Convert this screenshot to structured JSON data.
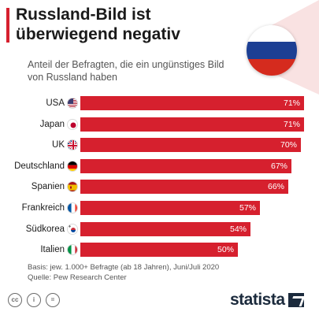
{
  "header": {
    "title": "Russland-Bild ist überwiegend negativ",
    "subtitle": "Anteil der Befragten, die ein ungünstiges Bild von Russland haben"
  },
  "colors": {
    "accent": "#d6202e",
    "bar": "#d6202e",
    "logo": "#1b2a3c"
  },
  "hero_flag": "russia-flag-icon",
  "chart_data": {
    "type": "bar",
    "orientation": "horizontal",
    "categories": [
      "USA",
      "Japan",
      "UK",
      "Deutschland",
      "Spanien",
      "Frankreich",
      "Südkorea",
      "Italien"
    ],
    "values": [
      71,
      71,
      70,
      67,
      66,
      57,
      54,
      50
    ],
    "value_labels": [
      "71%",
      "71%",
      "70%",
      "67%",
      "66%",
      "57%",
      "54%",
      "50%"
    ],
    "flags": [
      "usa-flag-icon",
      "japan-flag-icon",
      "uk-flag-icon",
      "germany-flag-icon",
      "spain-flag-icon",
      "france-flag-icon",
      "south-korea-flag-icon",
      "italy-flag-icon"
    ],
    "xlim": [
      0,
      71
    ],
    "unit": "%"
  },
  "footer": {
    "basis": "Basis: jew. 1.000+ Befragte (ab 18 Jahren), Juni/Juli 2020",
    "source": "Quelle: Pew Research Center",
    "license_icons": [
      "creative-commons-icon",
      "attribution-icon",
      "no-derivatives-icon"
    ],
    "logo": "statista"
  }
}
